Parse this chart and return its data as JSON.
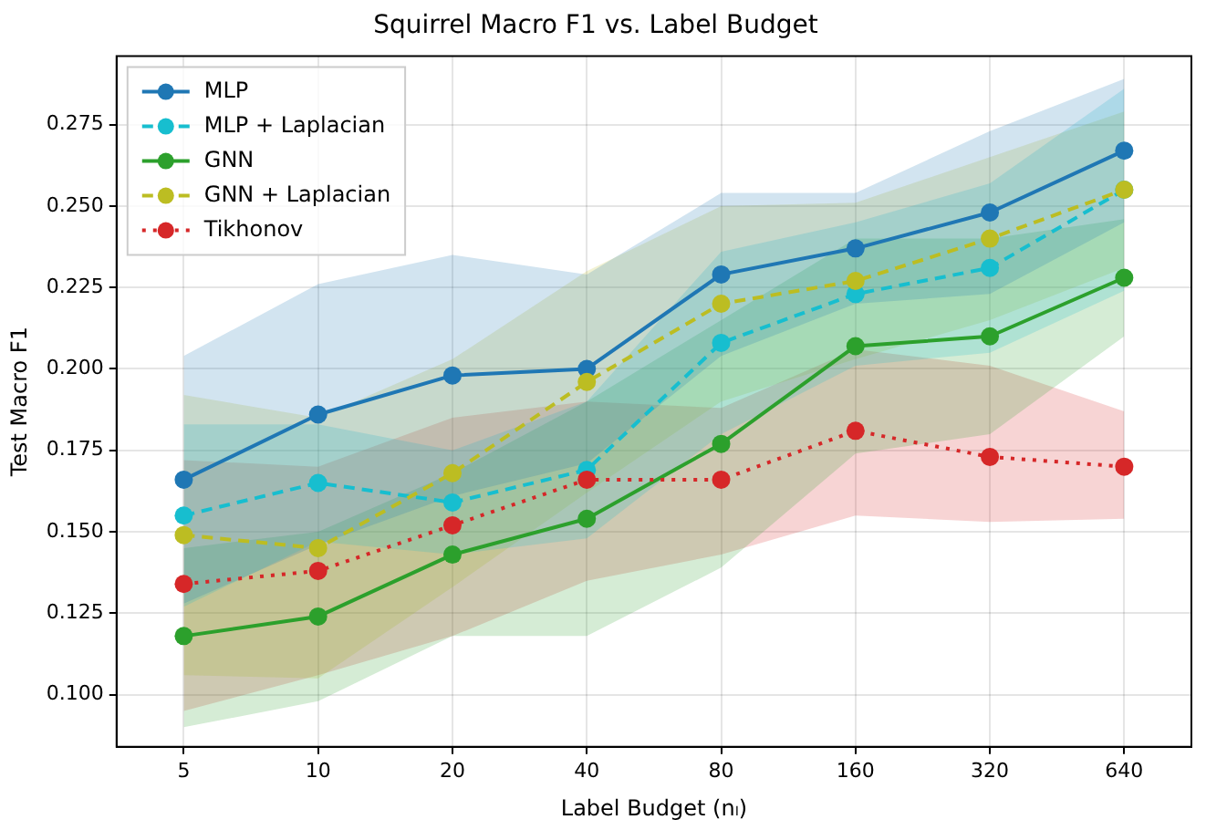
{
  "chart_data": {
    "type": "line",
    "title": "Squirrel Macro F1 vs. Label Budget",
    "xlabel": "Label Budget (nₗ)",
    "ylabel": "Test Macro F1",
    "categories": [
      "5",
      "10",
      "20",
      "40",
      "80",
      "160",
      "320",
      "640"
    ],
    "ylim": [
      0.084,
      0.296
    ],
    "yticks": [
      {
        "value": 0.1,
        "label": "0.100"
      },
      {
        "value": 0.125,
        "label": "0.125"
      },
      {
        "value": 0.15,
        "label": "0.150"
      },
      {
        "value": 0.175,
        "label": "0.175"
      },
      {
        "value": 0.2,
        "label": "0.200"
      },
      {
        "value": 0.225,
        "label": "0.225"
      },
      {
        "value": 0.25,
        "label": "0.250"
      },
      {
        "value": 0.275,
        "label": "0.275"
      }
    ],
    "grid": true,
    "legend": "top left",
    "marker": "circle",
    "series": [
      {
        "name": "MLP",
        "color": "#1f77b4",
        "line_style": "solid",
        "values": [
          0.166,
          0.186,
          0.198,
          0.2,
          0.229,
          0.237,
          0.248,
          0.267
        ],
        "lower": [
          0.128,
          0.146,
          0.161,
          0.171,
          0.204,
          0.22,
          0.223,
          0.245
        ],
        "upper": [
          0.204,
          0.226,
          0.235,
          0.229,
          0.254,
          0.254,
          0.273,
          0.289
        ]
      },
      {
        "name": "MLP + Laplacian",
        "color": "#17becf",
        "line_style": "dashed",
        "values": [
          0.155,
          0.165,
          0.159,
          0.169,
          0.208,
          0.223,
          0.231,
          0.255
        ],
        "lower": [
          0.127,
          0.147,
          0.143,
          0.148,
          0.18,
          0.201,
          0.205,
          0.224
        ],
        "upper": [
          0.183,
          0.183,
          0.175,
          0.19,
          0.236,
          0.245,
          0.257,
          0.286
        ]
      },
      {
        "name": "GNN",
        "color": "#2ca02c",
        "line_style": "solid",
        "values": [
          0.118,
          0.124,
          0.143,
          0.154,
          0.177,
          0.207,
          0.21,
          0.228
        ],
        "lower": [
          0.09,
          0.098,
          0.118,
          0.118,
          0.139,
          0.174,
          0.18,
          0.21
        ],
        "upper": [
          0.145,
          0.15,
          0.168,
          0.19,
          0.215,
          0.24,
          0.24,
          0.246
        ]
      },
      {
        "name": "GNN + Laplacian",
        "color": "#bcbd22",
        "line_style": "dashed",
        "values": [
          0.149,
          0.145,
          0.168,
          0.196,
          0.22,
          0.227,
          0.24,
          0.255
        ],
        "lower": [
          0.106,
          0.105,
          0.133,
          0.162,
          0.19,
          0.203,
          0.215,
          0.231
        ],
        "upper": [
          0.192,
          0.185,
          0.203,
          0.23,
          0.25,
          0.251,
          0.265,
          0.279
        ]
      },
      {
        "name": "Tikhonov",
        "color": "#d62728",
        "line_style": "dotted",
        "values": [
          0.134,
          0.138,
          0.152,
          0.166,
          0.166,
          0.181,
          0.173,
          0.17
        ],
        "lower": [
          0.095,
          0.106,
          0.118,
          0.135,
          0.143,
          0.155,
          0.153,
          0.154
        ],
        "upper": [
          0.172,
          0.17,
          0.185,
          0.19,
          0.188,
          0.206,
          0.201,
          0.187
        ]
      }
    ]
  }
}
